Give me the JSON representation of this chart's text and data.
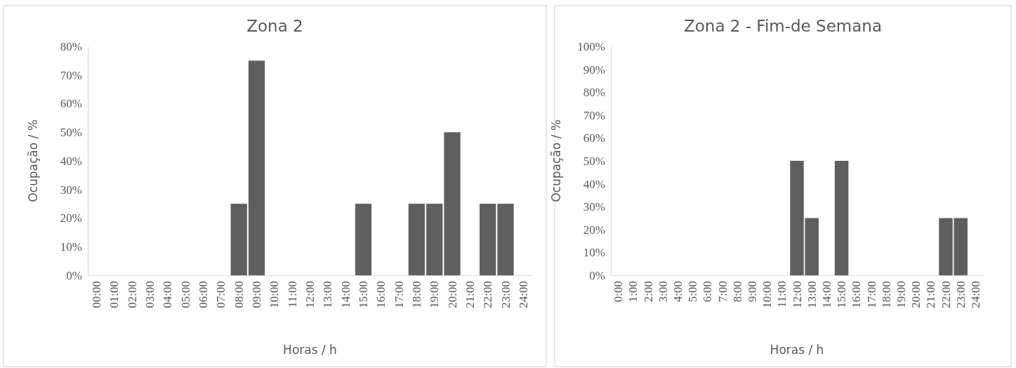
{
  "chart_data": [
    {
      "type": "bar",
      "title": "Zona 2",
      "xlabel": "Horas / h",
      "ylabel": "Ocupação / %",
      "categories": [
        "00:00",
        "01:00",
        "02:00",
        "03:00",
        "04:00",
        "05:00",
        "06:00",
        "07:00",
        "08:00",
        "09:00",
        "10:00",
        "11:00",
        "12:00",
        "13:00",
        "14:00",
        "15:00",
        "16:00",
        "17:00",
        "18:00",
        "19:00",
        "20:00",
        "21:00",
        "22:00",
        "23:00",
        "24:00"
      ],
      "values": [
        0,
        0,
        0,
        0,
        0,
        0,
        0,
        0,
        25,
        75,
        0,
        0,
        0,
        0,
        0,
        25,
        0,
        0,
        25,
        25,
        50,
        0,
        25,
        25,
        0
      ],
      "color": "#5f5f5f",
      "ylim": [
        0,
        80
      ],
      "yticks": [
        {
          "value": 0,
          "label": "0%"
        },
        {
          "value": 10,
          "label": "10%"
        },
        {
          "value": 20,
          "label": "20%"
        },
        {
          "value": 30,
          "label": "30%"
        },
        {
          "value": 40,
          "label": "40%"
        },
        {
          "value": 50,
          "label": "50%"
        },
        {
          "value": 60,
          "label": "60%"
        },
        {
          "value": 70,
          "label": "70%"
        },
        {
          "value": 80,
          "label": "80%"
        }
      ],
      "grid": false
    },
    {
      "type": "bar",
      "title": "Zona 2 - Fim-de Semana",
      "xlabel": "Horas / h",
      "ylabel": "Ocupação / %",
      "categories": [
        "0:00",
        "1:00",
        "2:00",
        "3:00",
        "4:00",
        "5:00",
        "6:00",
        "7:00",
        "8:00",
        "9:00",
        "10:00",
        "11:00",
        "12:00",
        "13:00",
        "14:00",
        "15:00",
        "16:00",
        "17:00",
        "18:00",
        "19:00",
        "20:00",
        "21:00",
        "22:00",
        "23:00",
        "24:00"
      ],
      "values": [
        0,
        0,
        0,
        0,
        0,
        0,
        0,
        0,
        0,
        0,
        0,
        0,
        50,
        25,
        0,
        50,
        0,
        0,
        0,
        0,
        0,
        0,
        25,
        25,
        0
      ],
      "color": "#5f5f5f",
      "ylim": [
        0,
        100
      ],
      "yticks": [
        {
          "value": 0,
          "label": "0%"
        },
        {
          "value": 10,
          "label": "10%"
        },
        {
          "value": 20,
          "label": "20%"
        },
        {
          "value": 30,
          "label": "30%"
        },
        {
          "value": 40,
          "label": "40%"
        },
        {
          "value": 50,
          "label": "50%"
        },
        {
          "value": 60,
          "label": "60%"
        },
        {
          "value": 70,
          "label": "70%"
        },
        {
          "value": 80,
          "label": "80%"
        },
        {
          "value": 90,
          "label": "90%"
        },
        {
          "value": 100,
          "label": "100%"
        }
      ],
      "grid": false
    }
  ]
}
